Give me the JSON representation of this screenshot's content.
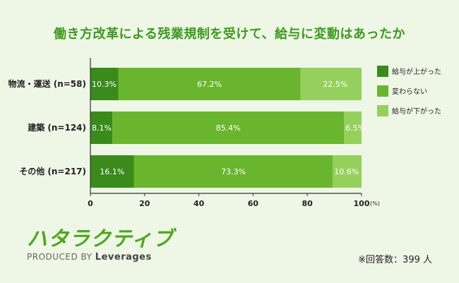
{
  "chart_data": {
    "type": "bar",
    "orientation": "horizontal",
    "stacked": true,
    "title": "働き方改革による残業規制を受けて、給与に変動はあったか",
    "categories": [
      "物流・運送 (n=58)",
      "建築 (n=124)",
      "その他 (n=217)"
    ],
    "series": [
      {
        "name": "給与が上がった",
        "values": [
          10.3,
          8.1,
          16.1
        ],
        "labels": [
          "10.3%",
          "8.1%",
          "16.1%"
        ],
        "color": "#3b8a1c"
      },
      {
        "name": "変わらない",
        "values": [
          67.2,
          85.4,
          73.3
        ],
        "labels": [
          "67.2%",
          "85.4%",
          "73.3%"
        ],
        "color": "#6ab52e"
      },
      {
        "name": "給与が下がった",
        "values": [
          22.5,
          6.5,
          10.6
        ],
        "labels": [
          "22.5%",
          "6.5%",
          "10.6%"
        ],
        "color": "#95d05d"
      }
    ],
    "xlim": [
      0,
      100
    ],
    "xticks": [
      "0",
      "20",
      "40",
      "60",
      "80",
      "100"
    ],
    "x_unit": "(%)",
    "legend_position": "right",
    "grid": false
  },
  "logo": {
    "name": "ハタラクティブ",
    "produced_by": "PRODUCED BY",
    "brand": "Leverages"
  },
  "note": "※回答数：399 人"
}
